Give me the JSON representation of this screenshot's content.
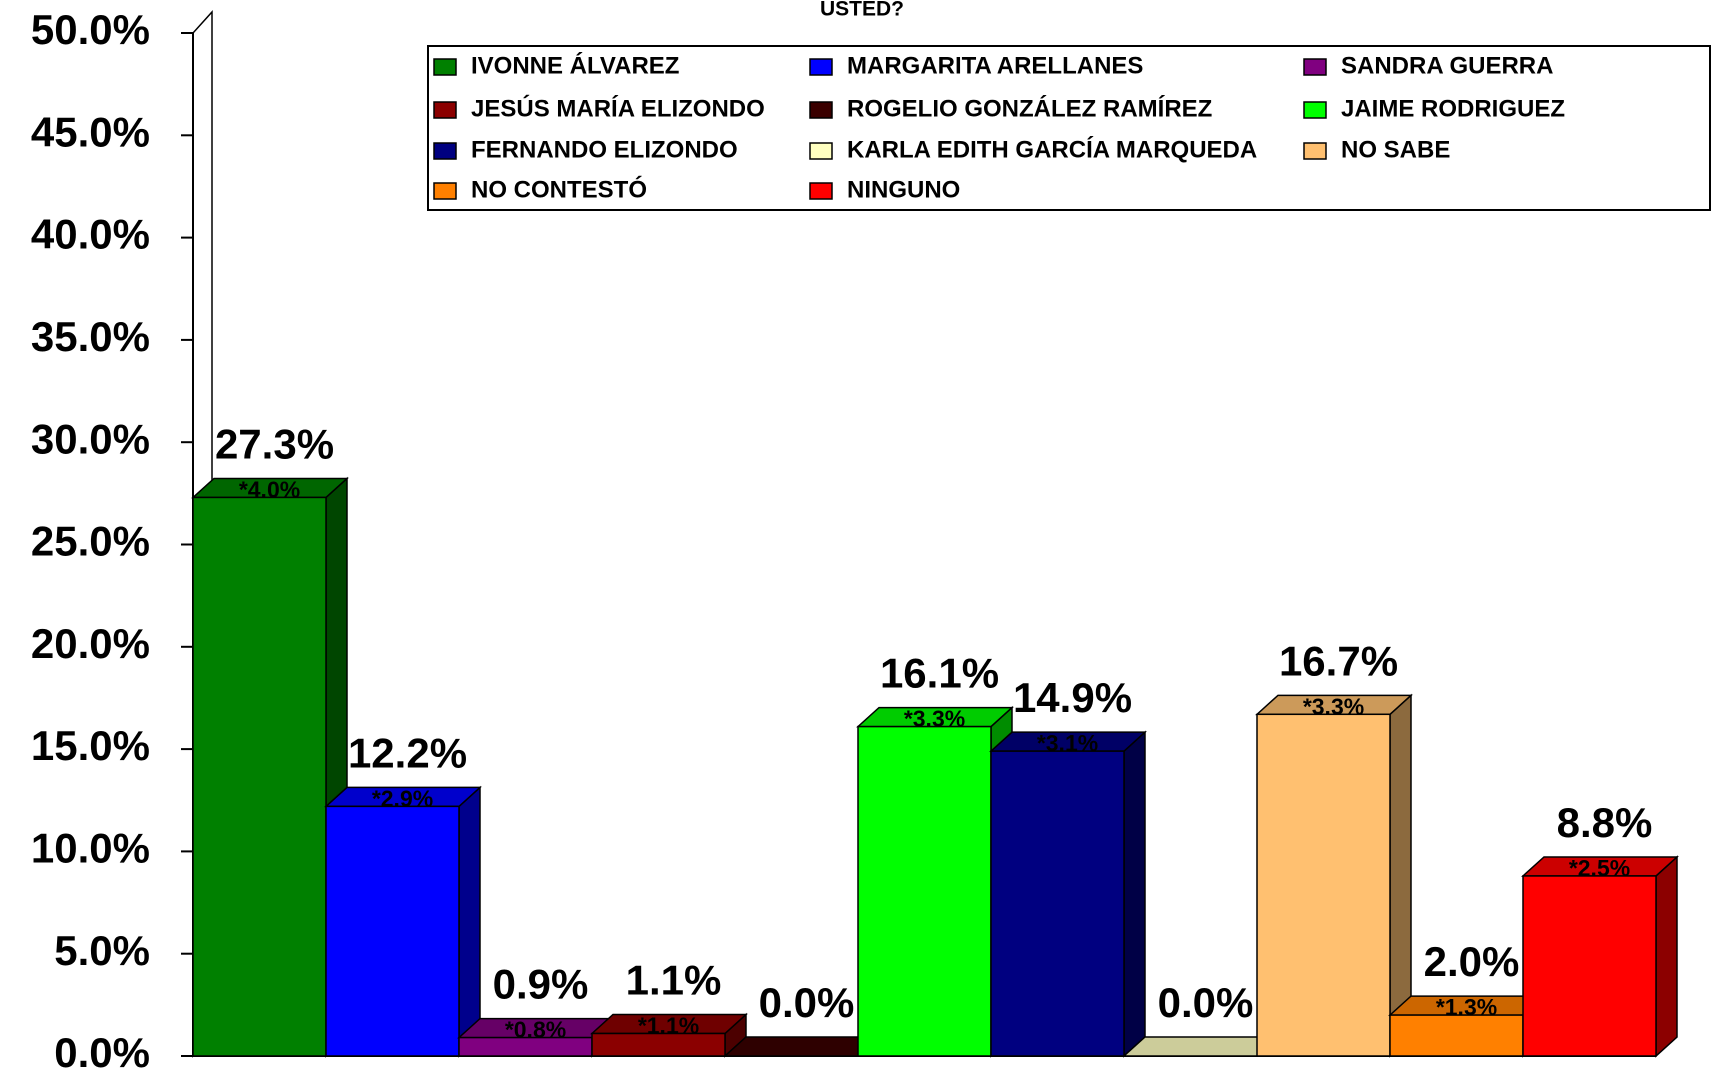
{
  "chart_data": {
    "type": "bar3d",
    "title": "USTED?",
    "categories": [
      "IVONNE ÁLVAREZ",
      "MARGARITA ARELLANES",
      "SANDRA GUERRA",
      "JESÚS MARÍA ELIZONDO",
      "ROGELIO GONZÁLEZ RAMÍREZ",
      "JAIME RODRIGUEZ",
      "FERNANDO ELIZONDO",
      "KARLA EDITH GARCÍA MARQUEDA",
      "NO SABE",
      "NO CONTESTÓ",
      "NINGUNO"
    ],
    "values": [
      27.3,
      12.2,
      0.9,
      1.1,
      0.0,
      16.1,
      14.9,
      0.0,
      16.7,
      2.0,
      8.8
    ],
    "value_labels": [
      "27.3%",
      "12.2%",
      "0.9%",
      "1.1%",
      "0.0%",
      "16.1%",
      "14.9%",
      "0.0%",
      "16.7%",
      "2.0%",
      "8.8%"
    ],
    "margin_labels": [
      "*4.0%",
      "*2.9%",
      "*0.8%",
      "*1.1%",
      null,
      "*3.3%",
      "*3.1%",
      null,
      "*3.3%",
      "*1.3%",
      "*2.5%"
    ],
    "colors": [
      "#008000",
      "#0000ff",
      "#800080",
      "#8b0000",
      "#3a0000",
      "#00ff00",
      "#000080",
      "#ffffc0",
      "#ffc070",
      "#ff8000",
      "#ff0000"
    ],
    "ylim": [
      0,
      50
    ],
    "yticks": [
      {
        "value": 0,
        "label": "0.0%"
      },
      {
        "value": 5,
        "label": "5.0%"
      },
      {
        "value": 10,
        "label": "10.0%"
      },
      {
        "value": 15,
        "label": "15.0%"
      },
      {
        "value": 20,
        "label": "20.0%"
      },
      {
        "value": 25,
        "label": "25.0%"
      },
      {
        "value": 30,
        "label": "30.0%"
      },
      {
        "value": 35,
        "label": "35.0%"
      },
      {
        "value": 40,
        "label": "40.0%"
      },
      {
        "value": 45,
        "label": "45.0%"
      },
      {
        "value": 50,
        "label": "50.0%"
      }
    ],
    "grid": false
  }
}
